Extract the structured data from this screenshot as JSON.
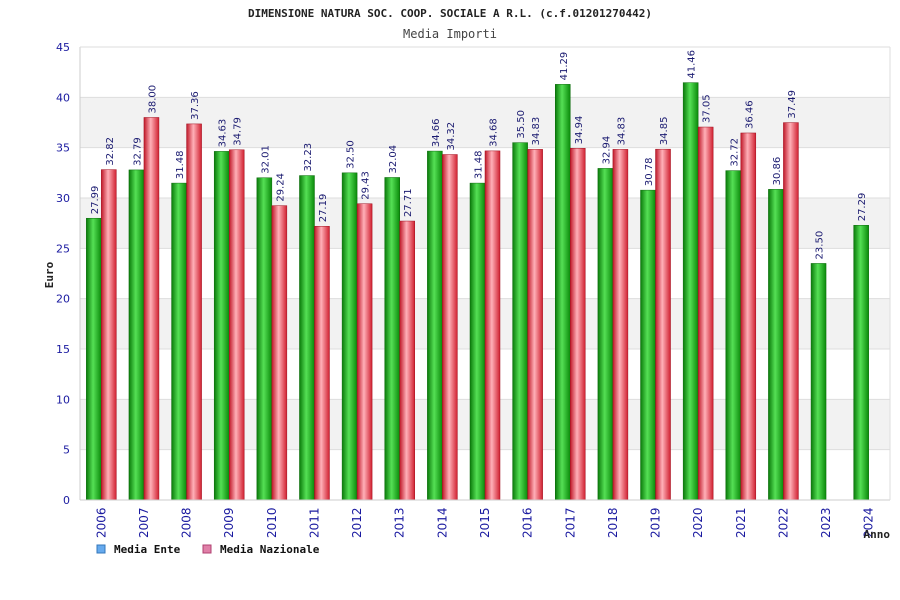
{
  "chart_data": {
    "type": "bar",
    "title": "DIMENSIONE NATURA SOC. COOP. SOCIALE A R.L. (c.f.01201270442)",
    "subtitle": "Media Importi",
    "xlabel": "Anno",
    "ylabel": "Euro",
    "ylim": [
      0,
      45
    ],
    "yticks": [
      0,
      5,
      10,
      15,
      20,
      25,
      30,
      35,
      40,
      45
    ],
    "grid": true,
    "legend_position": "bottom-left",
    "categories": [
      "2006",
      "2007",
      "2008",
      "2009",
      "2010",
      "2011",
      "2012",
      "2013",
      "2014",
      "2015",
      "2016",
      "2017",
      "2018",
      "2019",
      "2020",
      "2021",
      "2022",
      "2023",
      "2024"
    ],
    "series": [
      {
        "name": "Media Ente",
        "color": "#22aa22",
        "legend_color": "#66aaee",
        "values": [
          27.99,
          32.79,
          31.48,
          34.63,
          32.01,
          32.23,
          32.5,
          32.04,
          34.66,
          31.48,
          35.5,
          41.29,
          32.94,
          30.78,
          41.46,
          32.72,
          30.86,
          23.5,
          27.29
        ],
        "labels": [
          "27.99",
          "32.79",
          "31.48",
          "34.63",
          "32.01",
          "32.23",
          "32.50",
          "32.04",
          "34.66",
          "31.48",
          "35.50",
          "41.29",
          "32.94",
          "30.78",
          "41.46",
          "32.72",
          "30.86",
          "23.50",
          "27.29"
        ]
      },
      {
        "name": "Media Nazionale",
        "color": "#e03040",
        "legend_color": "#e080a8",
        "values": [
          32.82,
          38.0,
          37.36,
          34.79,
          29.24,
          27.19,
          29.43,
          27.71,
          34.32,
          34.68,
          34.83,
          34.94,
          34.83,
          34.85,
          37.05,
          36.46,
          37.49,
          null,
          null
        ],
        "labels": [
          "32.82",
          "38.00",
          "37.36",
          "34.79",
          "29.24",
          "27.19",
          "29.43",
          "27.71",
          "34.32",
          "34.68",
          "34.83",
          "34.94",
          "34.83",
          "34.85",
          "37.05",
          "36.46",
          "37.49",
          null,
          null
        ]
      }
    ]
  }
}
